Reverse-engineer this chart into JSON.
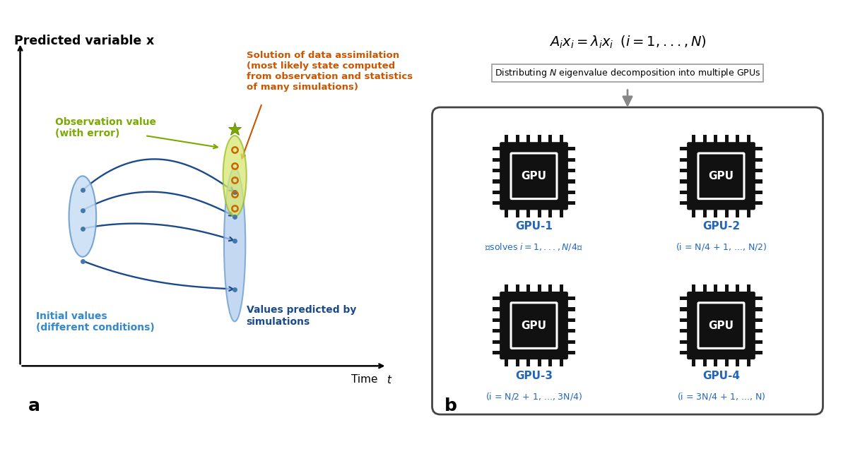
{
  "bg_color": "#ffffff",
  "left_panel": {
    "title_plain": "Predicted variable ",
    "title_italic": "x",
    "xlabel_plain": "Time ",
    "xlabel_italic": "t",
    "curve_color": "#1a4a8a",
    "label_initial": "Initial values\n(different conditions)",
    "label_initial_color": "#3388cc",
    "label_predicted": "Values predicted by\nsimulations",
    "label_predicted_color": "#1a4a8a",
    "label_obs": "Observation value\n(with error)",
    "label_obs_color": "#7aaa00",
    "label_solution": "Solution of data assimilation\n(most likely state computed\nfrom observation and statistics\nof many simulations)",
    "label_solution_color": "#cc5500"
  },
  "right_panel": {
    "gpu_label_color": "#2266bb",
    "gpu_chip_color": "#111111",
    "arrow_box_border": "#999999",
    "outer_box_border": "#444444",
    "formula_color": "#000000",
    "arrow_label_text": "Distributing $N$ eigenvalue decomposition into multiple GPUs",
    "gpu_names": [
      "GPU-1",
      "GPU-2",
      "GPU-3",
      "GPU-4"
    ],
    "gpu_sublabels": [
      "solves $i = 1, ..., N/4$",
      "$i = N/4 + 1, ..., N/2$",
      "$i = N/2 + 1, ..., 3N/4$",
      "$i = 3N/4 + 1, ..., N$"
    ]
  }
}
